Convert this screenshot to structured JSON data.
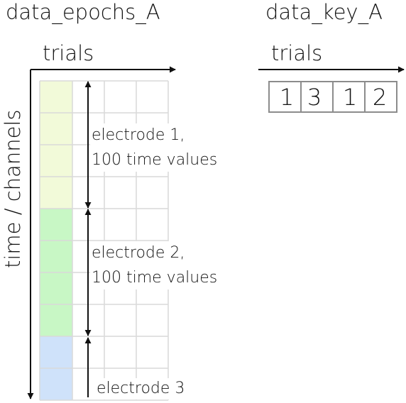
{
  "epochs": {
    "title": "data_epochs_A",
    "x_axis_label": "trials",
    "y_axis_label": "time / channels",
    "electrodes": [
      {
        "line1": "electrode 1,",
        "line2": "100 time values",
        "color": "#f2fad9"
      },
      {
        "line1": "electrode 2,",
        "line2": "100 time values",
        "color": "#c8f7c5"
      },
      {
        "line1": "electrode 3",
        "line2": "",
        "color": "#cfe2fa"
      }
    ]
  },
  "key": {
    "title": "data_key_A",
    "x_axis_label": "trials",
    "values": [
      "1",
      "3",
      "1",
      "2"
    ]
  }
}
